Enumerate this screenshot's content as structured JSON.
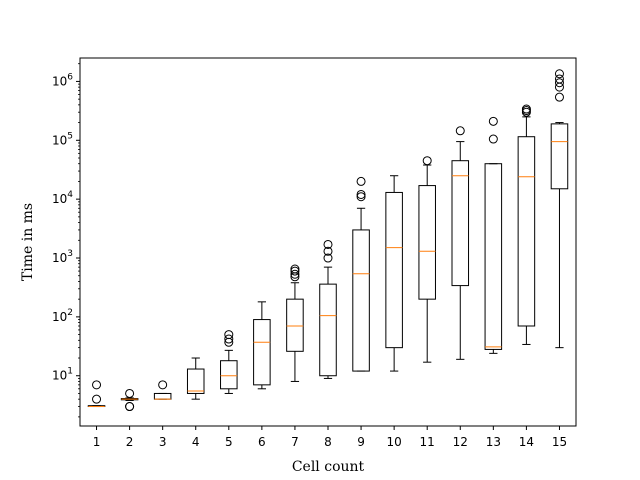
{
  "chart_data": {
    "type": "box",
    "title": "",
    "xlabel": "Cell count",
    "ylabel": "Time in ms",
    "yscale": "log",
    "ylim": [
      1.4,
      2500000
    ],
    "y_tick_labels": [
      "10^1",
      "10^2",
      "10^3",
      "10^4",
      "10^5",
      "10^6"
    ],
    "y_tick_values": [
      10,
      100,
      1000,
      10000,
      100000,
      1000000
    ],
    "grid": false,
    "colors": {
      "box": "#000000",
      "median": "#ff7f0e",
      "frame": "#000000"
    },
    "categories": [
      "1",
      "2",
      "3",
      "4",
      "5",
      "6",
      "7",
      "8",
      "9",
      "10",
      "11",
      "12",
      "13",
      "14",
      "15"
    ],
    "boxes": [
      {
        "label": "1",
        "whislo": 3,
        "q1": 3,
        "med": 3,
        "q3": 3.1,
        "whishi": 3.1,
        "fliers": [
          4,
          7
        ]
      },
      {
        "label": "2",
        "whislo": 3.8,
        "q1": 3.9,
        "med": 4,
        "q3": 4.1,
        "whishi": 4.2,
        "fliers": [
          3,
          3,
          5
        ]
      },
      {
        "label": "3",
        "whislo": 4,
        "q1": 4,
        "med": 4,
        "q3": 5,
        "whishi": 5,
        "fliers": [
          7
        ]
      },
      {
        "label": "4",
        "whislo": 4,
        "q1": 5,
        "med": 5.5,
        "q3": 13,
        "whishi": 20,
        "fliers": []
      },
      {
        "label": "5",
        "whislo": 5,
        "q1": 6,
        "med": 10,
        "q3": 18,
        "whishi": 27,
        "fliers": [
          37,
          42,
          50
        ]
      },
      {
        "label": "6",
        "whislo": 6,
        "q1": 7,
        "med": 37,
        "q3": 90,
        "whishi": 180,
        "fliers": []
      },
      {
        "label": "7",
        "whislo": 8,
        "q1": 26,
        "med": 70,
        "q3": 200,
        "whishi": 380,
        "fliers": [
          480,
          530,
          600,
          650
        ]
      },
      {
        "label": "8",
        "whislo": 9,
        "q1": 10,
        "med": 105,
        "q3": 360,
        "whishi": 700,
        "fliers": [
          1000,
          1300,
          1700
        ]
      },
      {
        "label": "9",
        "whislo": 12,
        "q1": 12,
        "med": 540,
        "q3": 3000,
        "whishi": 7000,
        "fliers": [
          11000,
          12000,
          20000
        ]
      },
      {
        "label": "10",
        "whislo": 12,
        "q1": 30,
        "med": 1500,
        "q3": 13000,
        "whishi": 25000,
        "fliers": []
      },
      {
        "label": "11",
        "whislo": 17,
        "q1": 200,
        "med": 1300,
        "q3": 17000,
        "whishi": 38000,
        "fliers": [
          45000
        ]
      },
      {
        "label": "12",
        "whislo": 19,
        "q1": 340,
        "med": 25000,
        "q3": 45000,
        "whishi": 95000,
        "fliers": [
          145000
        ]
      },
      {
        "label": "13",
        "whislo": 24,
        "q1": 28,
        "med": 31,
        "q3": 40000,
        "whishi": 40000,
        "fliers": [
          105000,
          210000
        ]
      },
      {
        "label": "14",
        "whislo": 34,
        "q1": 70,
        "med": 24000,
        "q3": 115000,
        "whishi": 250000,
        "fliers": [
          300000,
          320000,
          340000
        ]
      },
      {
        "label": "15",
        "whislo": 30,
        "q1": 15000,
        "med": 95000,
        "q3": 190000,
        "whishi": 200000,
        "fliers": [
          540000,
          800000,
          950000,
          1100000,
          1350000
        ]
      }
    ]
  }
}
